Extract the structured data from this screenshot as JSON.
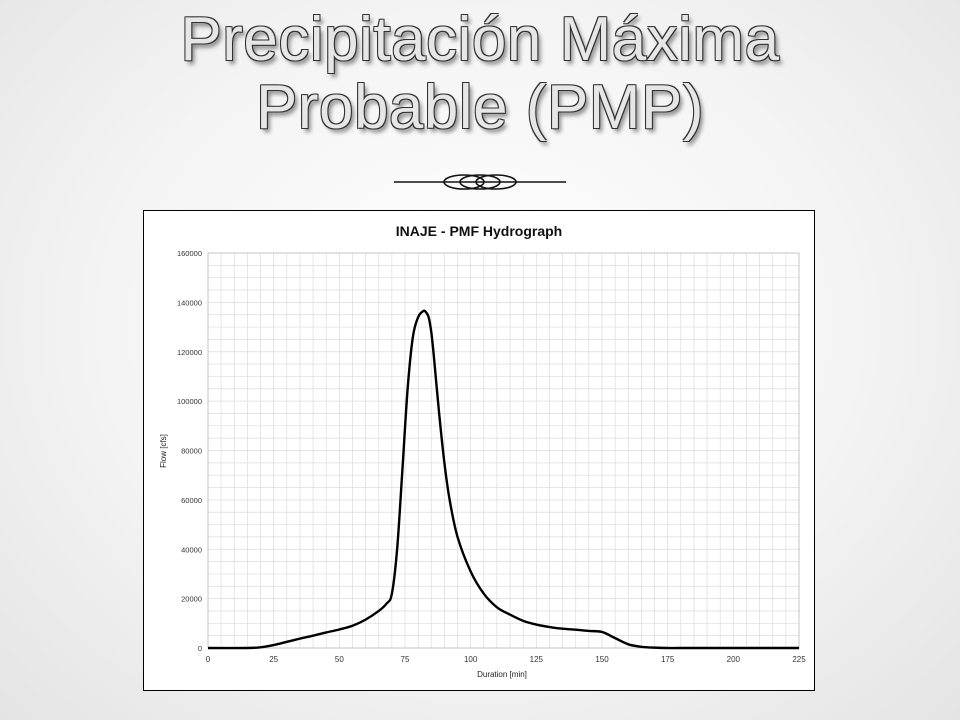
{
  "slide": {
    "title_line1": "Precipitación Máxima",
    "title_line2": "Probable (PMP)"
  },
  "colors": {
    "background": "#efefef",
    "title_fill": "#e6e6e6",
    "curve": "#000000",
    "grid": "#d9d9d9"
  },
  "chart_data": {
    "type": "line",
    "title": "INAJE - PMF Hydrograph",
    "xlabel": "Duration [min]",
    "ylabel": "Flow  [cfs]",
    "xlim": [
      0,
      225
    ],
    "ylim": [
      0,
      160000
    ],
    "x_ticks": [
      0,
      25,
      50,
      75,
      100,
      125,
      150,
      175,
      200,
      225
    ],
    "y_ticks": [
      0,
      20000,
      40000,
      60000,
      80000,
      100000,
      120000,
      140000,
      160000
    ],
    "x_tick_labels": [
      "0",
      "25",
      "50",
      "75",
      "100",
      "125",
      "150",
      "175",
      "200",
      "225"
    ],
    "y_tick_labels": [
      "0",
      "20000",
      "40000",
      "60000",
      "80000",
      "100000",
      "120000",
      "140000",
      "160000"
    ],
    "grid": true,
    "legend": "none",
    "series": [
      {
        "x": [
          0,
          15,
          20,
          25,
          30,
          35,
          40,
          45,
          50,
          55,
          60,
          65,
          68,
          70,
          72,
          74,
          76,
          78,
          80,
          82,
          83,
          84,
          85,
          86,
          88,
          90,
          92,
          95,
          100,
          105,
          110,
          115,
          120,
          125,
          130,
          135,
          140,
          145,
          150,
          155,
          160,
          165,
          170,
          175,
          180,
          200,
          225
        ],
        "y": [
          0,
          0,
          300,
          1200,
          2500,
          3800,
          5000,
          6300,
          7500,
          9000,
          11500,
          15000,
          18000,
          22000,
          40000,
          72000,
          105000,
          126000,
          134000,
          136500,
          136000,
          134000,
          128000,
          118000,
          95000,
          75000,
          60000,
          45000,
          31000,
          22000,
          16500,
          13500,
          11000,
          9500,
          8500,
          7800,
          7400,
          6900,
          6500,
          4000,
          1500,
          500,
          150,
          0,
          0,
          0,
          0
        ]
      }
    ]
  }
}
